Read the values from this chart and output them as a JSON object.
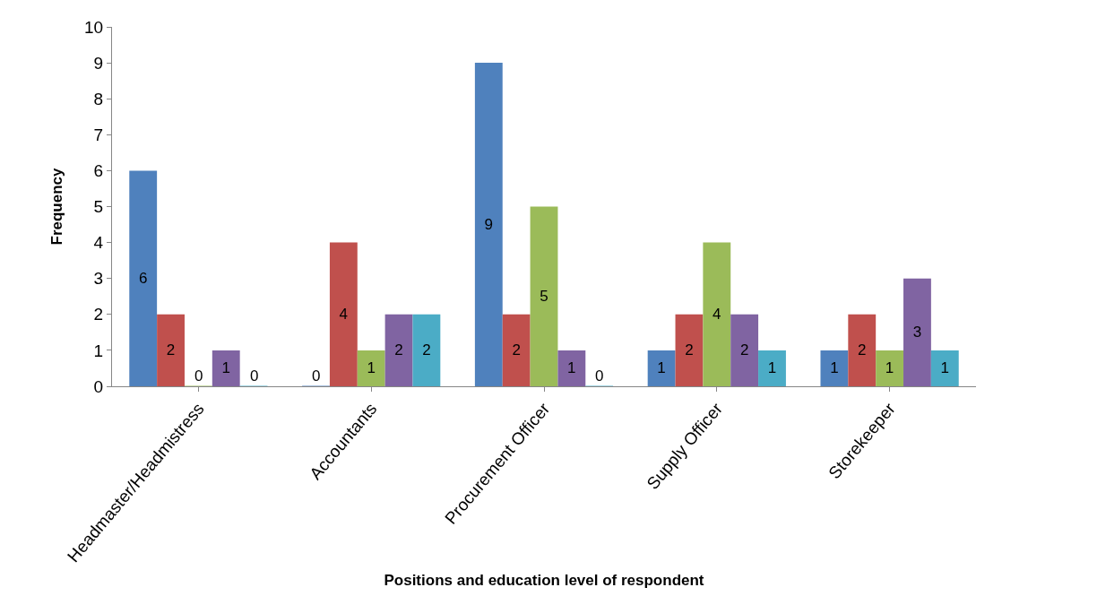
{
  "chart_data": {
    "type": "bar",
    "xlabel": "Positions and education level of respondent",
    "ylabel": "Frequency",
    "categories": [
      "Headmaster/Headmistress",
      "Accountants",
      "Procurement Officer",
      "Supply Officer",
      "Storekeeper"
    ],
    "series": [
      {
        "color": "#4f81bd",
        "values": [
          6,
          0,
          9,
          1,
          1
        ]
      },
      {
        "color": "#c0504d",
        "values": [
          2,
          4,
          2,
          2,
          2
        ]
      },
      {
        "color": "#9bbb59",
        "values": [
          0,
          1,
          5,
          4,
          1
        ]
      },
      {
        "color": "#8064a2",
        "values": [
          1,
          2,
          1,
          2,
          3
        ]
      },
      {
        "color": "#4bacc6",
        "values": [
          0,
          2,
          0,
          1,
          1
        ]
      }
    ],
    "ylim": [
      0,
      10
    ],
    "yticks": [
      0,
      1,
      2,
      3,
      4,
      5,
      6,
      7,
      8,
      9,
      10
    ],
    "grid": false,
    "data_labels": true
  }
}
